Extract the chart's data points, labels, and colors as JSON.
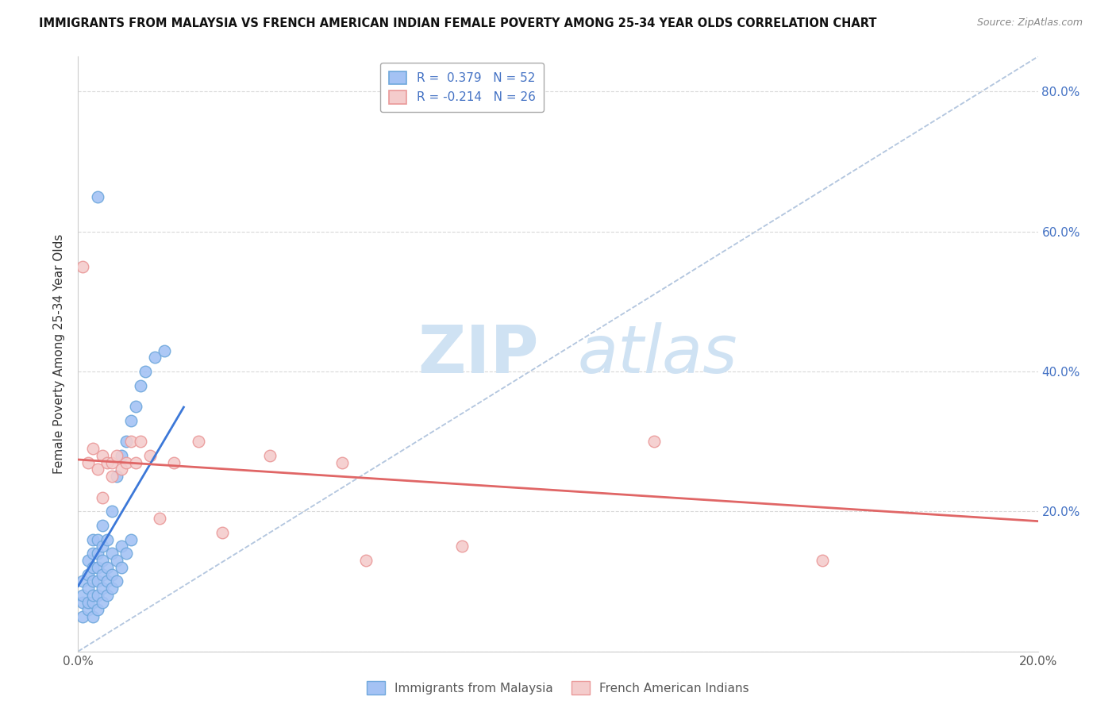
{
  "title": "IMMIGRANTS FROM MALAYSIA VS FRENCH AMERICAN INDIAN FEMALE POVERTY AMONG 25-34 YEAR OLDS CORRELATION CHART",
  "source": "Source: ZipAtlas.com",
  "ylabel": "Female Poverty Among 25-34 Year Olds",
  "legend_label1": "Immigrants from Malaysia",
  "legend_label2": "French American Indians",
  "R1": 0.379,
  "N1": 52,
  "R2": -0.214,
  "N2": 26,
  "xlim": [
    0.0,
    0.2
  ],
  "ylim": [
    0.0,
    0.85
  ],
  "blue_color": "#6fa8dc",
  "blue_fill": "#a4c2f4",
  "pink_color": "#ea9999",
  "pink_fill": "#f4cccc",
  "blue_line_color": "#3c78d8",
  "pink_line_color": "#e06666",
  "diag_line_color": "#b0c4de",
  "background_color": "#ffffff",
  "grid_color": "#d9d9d9",
  "watermark_zip": "ZIP",
  "watermark_atlas": "atlas",
  "watermark_color": "#cfe2f3",
  "text_color": "#595959",
  "right_tick_color": "#4472c4",
  "blue_scatter_x": [
    0.001,
    0.001,
    0.001,
    0.001,
    0.002,
    0.002,
    0.002,
    0.002,
    0.002,
    0.003,
    0.003,
    0.003,
    0.003,
    0.003,
    0.003,
    0.003,
    0.004,
    0.004,
    0.004,
    0.004,
    0.004,
    0.004,
    0.004,
    0.005,
    0.005,
    0.005,
    0.005,
    0.005,
    0.005,
    0.006,
    0.006,
    0.006,
    0.006,
    0.007,
    0.007,
    0.007,
    0.007,
    0.008,
    0.008,
    0.008,
    0.009,
    0.009,
    0.009,
    0.01,
    0.01,
    0.011,
    0.011,
    0.012,
    0.013,
    0.014,
    0.016,
    0.018
  ],
  "blue_scatter_y": [
    0.05,
    0.07,
    0.08,
    0.1,
    0.06,
    0.07,
    0.09,
    0.11,
    0.13,
    0.05,
    0.07,
    0.08,
    0.1,
    0.12,
    0.14,
    0.16,
    0.06,
    0.08,
    0.1,
    0.12,
    0.14,
    0.16,
    0.65,
    0.07,
    0.09,
    0.11,
    0.13,
    0.15,
    0.18,
    0.08,
    0.1,
    0.12,
    0.16,
    0.09,
    0.11,
    0.14,
    0.2,
    0.1,
    0.13,
    0.25,
    0.12,
    0.15,
    0.28,
    0.14,
    0.3,
    0.16,
    0.33,
    0.35,
    0.38,
    0.4,
    0.42,
    0.43
  ],
  "pink_scatter_x": [
    0.001,
    0.002,
    0.003,
    0.004,
    0.005,
    0.005,
    0.006,
    0.007,
    0.007,
    0.008,
    0.009,
    0.01,
    0.011,
    0.012,
    0.013,
    0.015,
    0.017,
    0.02,
    0.025,
    0.03,
    0.04,
    0.055,
    0.06,
    0.08,
    0.12,
    0.155
  ],
  "pink_scatter_y": [
    0.55,
    0.27,
    0.29,
    0.26,
    0.28,
    0.22,
    0.27,
    0.25,
    0.27,
    0.28,
    0.26,
    0.27,
    0.3,
    0.27,
    0.3,
    0.28,
    0.19,
    0.27,
    0.3,
    0.17,
    0.28,
    0.27,
    0.13,
    0.15,
    0.3,
    0.13
  ]
}
